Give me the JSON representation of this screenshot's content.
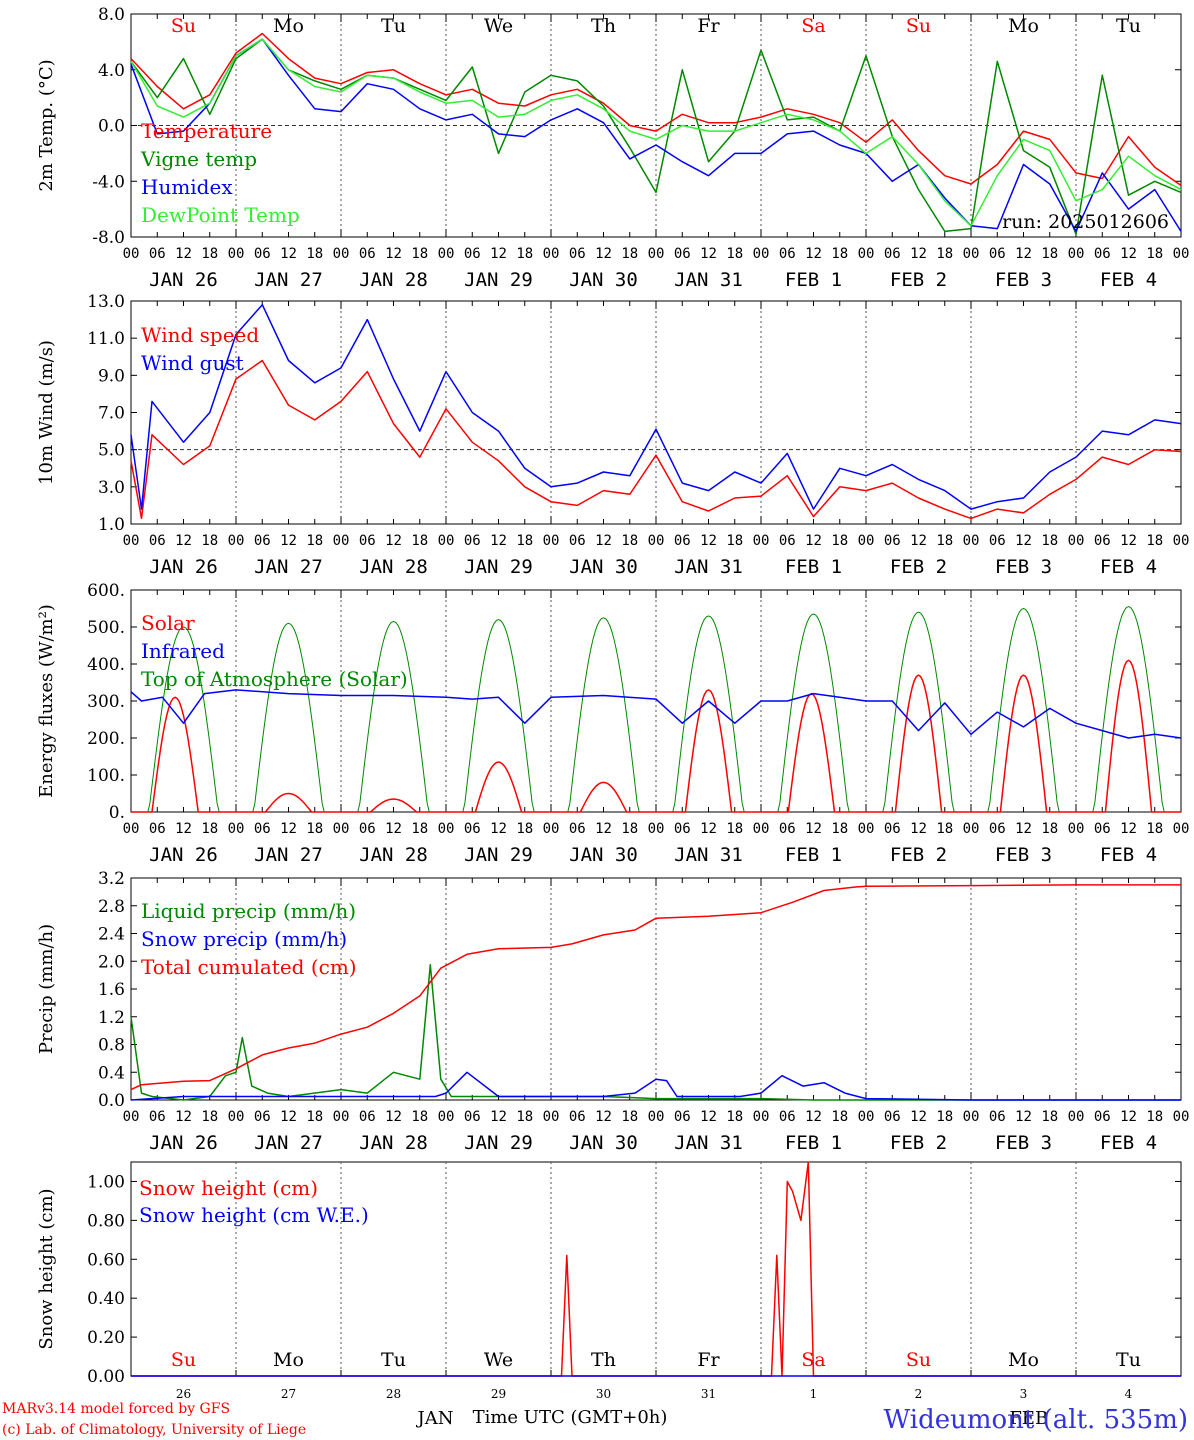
{
  "colors": {
    "red": "#ff0000",
    "green": "#008800",
    "lightgreen": "#33ee33",
    "blue": "#0000ff",
    "black": "#000000",
    "footer_blue": "#3333dd"
  },
  "day_labels": [
    "Su",
    "Mo",
    "Tu",
    "We",
    "Th",
    "Fr",
    "Sa",
    "Su",
    "Mo",
    "Tu"
  ],
  "day_label_colors": [
    "red",
    "black",
    "black",
    "black",
    "black",
    "black",
    "red",
    "red",
    "black",
    "black"
  ],
  "date_labels": [
    "JAN 26",
    "JAN 27",
    "JAN 28",
    "JAN 29",
    "JAN 30",
    "JAN 31",
    "FEB  1",
    "FEB  2",
    "FEB  3",
    "FEB  4"
  ],
  "hour_ticks": [
    "00",
    "06",
    "12",
    "18"
  ],
  "last_hour_tick": "00",
  "run_label": "run: 2025012606",
  "bottom_day_numbers": [
    "26",
    "27",
    "28",
    "29",
    "30",
    "31",
    "1",
    "2",
    "3",
    "4"
  ],
  "month_labels": [
    {
      "text": "JAN",
      "day": 2.9
    },
    {
      "text": "FEB",
      "day": 8.55
    }
  ],
  "xlabel": "Time UTC (GMT+0h)",
  "footer": {
    "left1": "MARv3.14 model forced by GFS",
    "left2": "(c) Lab. of Climatology, University of Liege",
    "station": "Wideumont (alt. 535m)"
  },
  "chart_data": [
    {
      "type": "line",
      "ylabel": "2m Temp. (°C)",
      "ylim": [
        -8,
        8
      ],
      "yticks": [
        "8.0",
        "4.0",
        "0.0",
        "-4.0",
        "-8.0"
      ],
      "ytick_values": [
        8,
        4,
        0,
        -4,
        -8
      ],
      "dashed_y": 0,
      "x_days": [
        0.0,
        0.25,
        0.5,
        0.75,
        1.0,
        1.25,
        1.5,
        1.75,
        2.0,
        2.25,
        2.5,
        2.75,
        3.0,
        3.25,
        3.5,
        3.75,
        4.0,
        4.25,
        4.5,
        4.75,
        5.0,
        5.25,
        5.5,
        5.75,
        6.0,
        6.25,
        6.5,
        6.75,
        7.0,
        7.25,
        7.5,
        7.75,
        8.0,
        8.25,
        8.5,
        8.75,
        9.0,
        9.25,
        9.5,
        9.75,
        10.0
      ],
      "series": [
        {
          "name": "Temperature",
          "color": "red",
          "values": [
            4.8,
            2.8,
            1.2,
            2.2,
            5.2,
            6.6,
            4.8,
            3.4,
            3.0,
            3.8,
            4.0,
            3.0,
            2.2,
            2.6,
            1.6,
            1.4,
            2.2,
            2.6,
            1.6,
            0.0,
            -0.4,
            0.8,
            0.2,
            0.2,
            0.6,
            1.2,
            0.8,
            0.2,
            -1.2,
            0.4,
            -1.8,
            -3.6,
            -4.2,
            -2.8,
            -0.4,
            -1.0,
            -3.4,
            -3.8,
            -0.8,
            -3.0,
            -4.3
          ]
        },
        {
          "name": "Vigne temp",
          "color": "green",
          "values": [
            4.6,
            2.0,
            4.8,
            0.8,
            4.8,
            6.2,
            4.0,
            3.2,
            2.6,
            3.6,
            3.4,
            2.6,
            1.8,
            4.2,
            -2.0,
            2.4,
            3.6,
            3.2,
            1.4,
            -1.6,
            -4.8,
            4.0,
            -2.6,
            -0.4,
            5.4,
            0.4,
            0.6,
            -0.4,
            5.0,
            -0.8,
            -4.6,
            -7.6,
            -7.4,
            4.6,
            -1.8,
            -3.0,
            -7.8,
            3.6,
            -5.0,
            -4.0,
            -4.8
          ]
        },
        {
          "name": "Humidex",
          "color": "blue",
          "values": [
            4.4,
            -0.6,
            -0.4,
            1.6,
            5.0,
            6.2,
            3.6,
            1.2,
            1.0,
            3.0,
            2.6,
            1.2,
            0.4,
            0.8,
            -0.6,
            -0.8,
            0.4,
            1.2,
            0.2,
            -2.4,
            -1.4,
            -2.6,
            -3.6,
            -2.0,
            -2.0,
            -0.6,
            -0.4,
            -1.4,
            -2.0,
            -4.0,
            -2.8,
            -5.2,
            -7.2,
            -7.4,
            -2.8,
            -4.2,
            -7.6,
            -3.4,
            -6.0,
            -4.6,
            -7.6
          ]
        },
        {
          "name": "DewPoint Temp",
          "color": "lightgreen",
          "values": [
            4.6,
            1.4,
            0.6,
            1.6,
            5.0,
            6.2,
            4.0,
            2.8,
            2.4,
            3.6,
            3.4,
            2.4,
            1.6,
            1.8,
            0.6,
            0.8,
            1.8,
            2.2,
            1.2,
            -0.4,
            -1.0,
            0.0,
            -0.4,
            -0.4,
            0.2,
            0.8,
            0.4,
            -0.4,
            -2.0,
            -0.8,
            -2.8,
            -5.4,
            -7.2,
            -3.6,
            -1.0,
            -1.8,
            -5.4,
            -4.6,
            -2.2,
            -3.6,
            -4.6
          ]
        }
      ]
    },
    {
      "type": "line",
      "ylabel": "10m Wind (m/s)",
      "ylim": [
        1,
        13
      ],
      "yticks": [
        "13.0",
        "11.0",
        "9.0",
        "7.0",
        "5.0",
        "3.0",
        "1.0"
      ],
      "ytick_values": [
        13,
        11,
        9,
        7,
        5,
        3,
        1
      ],
      "dashed_y": 5,
      "x_days": [
        0.0,
        0.1,
        0.2,
        0.5,
        0.75,
        1.0,
        1.25,
        1.5,
        1.75,
        2.0,
        2.25,
        2.5,
        2.75,
        3.0,
        3.25,
        3.5,
        3.75,
        4.0,
        4.25,
        4.5,
        4.75,
        5.0,
        5.25,
        5.5,
        5.75,
        6.0,
        6.25,
        6.5,
        6.75,
        7.0,
        7.25,
        7.5,
        7.75,
        8.0,
        8.25,
        8.5,
        8.75,
        9.0,
        9.25,
        9.5,
        9.75,
        10.0
      ],
      "series": [
        {
          "name": "Wind speed",
          "color": "red",
          "values": [
            4.4,
            1.3,
            5.8,
            4.2,
            5.2,
            8.8,
            9.8,
            7.4,
            6.6,
            7.6,
            9.2,
            6.4,
            4.6,
            7.2,
            5.4,
            4.4,
            3.0,
            2.2,
            2.0,
            2.8,
            2.6,
            4.7,
            2.2,
            1.7,
            2.4,
            2.5,
            3.6,
            1.4,
            3.0,
            2.8,
            3.2,
            2.4,
            1.8,
            1.3,
            1.8,
            1.6,
            2.6,
            3.4,
            4.6,
            4.2,
            5.0,
            4.9
          ]
        },
        {
          "name": "Wind gust",
          "color": "blue",
          "values": [
            5.8,
            1.8,
            7.6,
            5.4,
            7.0,
            11.2,
            12.8,
            9.8,
            8.6,
            9.4,
            12.0,
            8.8,
            6.0,
            9.2,
            7.0,
            6.0,
            4.0,
            3.0,
            3.2,
            3.8,
            3.6,
            6.1,
            3.2,
            2.8,
            3.8,
            3.2,
            4.8,
            1.8,
            4.0,
            3.6,
            4.2,
            3.4,
            2.8,
            1.8,
            2.2,
            2.4,
            3.8,
            4.6,
            6.0,
            5.8,
            6.6,
            6.4
          ]
        }
      ]
    },
    {
      "type": "line",
      "ylabel": "Energy fluxes (W/m²)",
      "ylim": [
        0,
        600
      ],
      "yticks": [
        "600.",
        "500.",
        "400.",
        "300.",
        "200.",
        "100.",
        "0."
      ],
      "ytick_values": [
        600,
        500,
        400,
        300,
        200,
        100,
        0
      ],
      "dashed_y": null,
      "toa_peaks": [
        [
          0.5,
          500
        ],
        [
          1.5,
          510
        ],
        [
          2.5,
          515
        ],
        [
          3.5,
          520
        ],
        [
          4.5,
          525
        ],
        [
          5.5,
          530
        ],
        [
          6.5,
          535
        ],
        [
          7.5,
          540
        ],
        [
          8.5,
          550
        ],
        [
          9.5,
          555
        ]
      ],
      "solar_peaks": [
        [
          0.42,
          310
        ],
        [
          1.5,
          50
        ],
        [
          2.5,
          35
        ],
        [
          3.5,
          135
        ],
        [
          4.5,
          80
        ],
        [
          5.5,
          330
        ],
        [
          6.48,
          320
        ],
        [
          7.5,
          370
        ],
        [
          8.5,
          370
        ],
        [
          9.5,
          410
        ]
      ],
      "series": [
        {
          "name": "Solar",
          "color": "red"
        },
        {
          "name": "Infrared",
          "color": "blue",
          "x_days": [
            0.0,
            0.1,
            0.3,
            0.5,
            0.7,
            1.0,
            1.5,
            2.0,
            2.5,
            3.0,
            3.25,
            3.5,
            3.75,
            4.0,
            4.5,
            5.0,
            5.25,
            5.5,
            5.75,
            6.0,
            6.25,
            6.5,
            6.75,
            7.0,
            7.25,
            7.5,
            7.75,
            8.0,
            8.25,
            8.5,
            8.75,
            9.0,
            9.25,
            9.5,
            9.75,
            10.0
          ],
          "values": [
            325,
            300,
            310,
            240,
            320,
            330,
            320,
            315,
            315,
            310,
            305,
            310,
            240,
            310,
            315,
            305,
            240,
            300,
            240,
            300,
            300,
            320,
            310,
            300,
            300,
            220,
            295,
            210,
            270,
            230,
            280,
            240,
            220,
            200,
            210,
            200
          ]
        },
        {
          "name": "Top of Atmosphere (Solar)",
          "color": "green"
        }
      ]
    },
    {
      "type": "line",
      "ylabel": "Precip (mm/h)",
      "ylim": [
        0,
        3.2
      ],
      "yticks": [
        "3.2",
        "2.8",
        "2.4",
        "2.0",
        "1.6",
        "1.2",
        "0.8",
        "0.4",
        "0.0"
      ],
      "ytick_values": [
        3.2,
        2.8,
        2.4,
        2.0,
        1.6,
        1.2,
        0.8,
        0.4,
        0.0
      ],
      "dashed_y": null,
      "series": [
        {
          "name": "Liquid precip (mm/h)",
          "color": "green",
          "x_days": [
            0.0,
            0.1,
            0.2,
            0.5,
            0.75,
            0.9,
            1.0,
            1.06,
            1.15,
            1.3,
            1.5,
            2.0,
            2.25,
            2.5,
            2.75,
            2.85,
            2.95,
            3.05,
            3.2,
            3.5,
            4.0,
            4.5,
            5.0,
            5.5,
            6.0,
            6.5,
            7.0,
            7.5,
            8.0,
            9.0,
            10.0
          ],
          "values": [
            1.2,
            0.1,
            0.05,
            0.0,
            0.05,
            0.35,
            0.4,
            0.9,
            0.2,
            0.1,
            0.05,
            0.15,
            0.1,
            0.4,
            0.3,
            1.95,
            0.3,
            0.05,
            0.05,
            0.05,
            0.05,
            0.05,
            0.02,
            0.02,
            0.02,
            0.0,
            0.0,
            0.0,
            0.0,
            0.0,
            0.0
          ]
        },
        {
          "name": "Snow precip (mm/h)",
          "color": "blue",
          "x_days": [
            0.0,
            0.5,
            1.0,
            2.0,
            2.9,
            3.0,
            3.2,
            3.5,
            4.0,
            4.5,
            4.8,
            5.0,
            5.1,
            5.2,
            5.5,
            5.8,
            6.0,
            6.2,
            6.4,
            6.6,
            6.8,
            7.0,
            8.0,
            9.0,
            10.0
          ],
          "values": [
            0.0,
            0.05,
            0.05,
            0.05,
            0.05,
            0.1,
            0.4,
            0.05,
            0.05,
            0.05,
            0.1,
            0.3,
            0.28,
            0.05,
            0.05,
            0.05,
            0.1,
            0.35,
            0.2,
            0.25,
            0.1,
            0.02,
            0.0,
            0.0,
            0.0
          ]
        },
        {
          "name": "Total cumulated (cm)",
          "color": "red",
          "x_days": [
            0.0,
            0.1,
            0.5,
            0.75,
            1.0,
            1.25,
            1.5,
            1.75,
            2.0,
            2.25,
            2.5,
            2.75,
            2.95,
            3.2,
            3.5,
            4.0,
            4.2,
            4.5,
            4.8,
            5.0,
            5.5,
            6.0,
            6.3,
            6.6,
            6.9,
            7.0,
            8.0,
            9.0,
            10.0
          ],
          "values": [
            0.15,
            0.22,
            0.27,
            0.28,
            0.45,
            0.65,
            0.75,
            0.82,
            0.95,
            1.05,
            1.25,
            1.5,
            1.9,
            2.1,
            2.18,
            2.2,
            2.25,
            2.38,
            2.45,
            2.62,
            2.65,
            2.7,
            2.85,
            3.02,
            3.07,
            3.08,
            3.09,
            3.1,
            3.1
          ]
        }
      ]
    },
    {
      "type": "line",
      "ylabel": "Snow height (cm)",
      "ylim": [
        0,
        1.1
      ],
      "yticks": [
        "1.00",
        "0.80",
        "0.60",
        "0.40",
        "0.20",
        "0.00"
      ],
      "ytick_values": [
        1.0,
        0.8,
        0.6,
        0.4,
        0.2,
        0.0
      ],
      "dashed_y": null,
      "series": [
        {
          "name": "Snow height (cm)",
          "color": "red",
          "x_days": [
            0.0,
            4.1,
            4.15,
            4.2,
            6.1,
            6.15,
            6.2,
            6.25,
            6.3,
            6.38,
            6.45,
            6.5,
            6.55,
            10.0
          ],
          "values": [
            0.0,
            0.0,
            0.62,
            0.0,
            0.0,
            0.62,
            0.0,
            1.0,
            0.95,
            0.8,
            1.1,
            0.0,
            0.0,
            0.0
          ]
        },
        {
          "name": "Snow height (cm W.E.)",
          "color": "blue",
          "x_days": [
            0.0,
            10.0
          ],
          "values": [
            0.0,
            0.0
          ]
        }
      ]
    }
  ]
}
